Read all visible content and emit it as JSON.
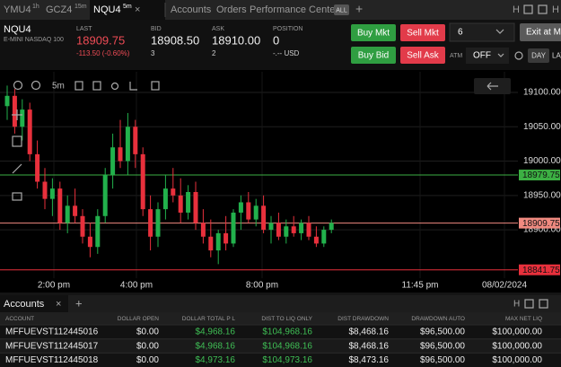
{
  "tabs": [
    {
      "symbol": "YMU4",
      "interval": "1h"
    },
    {
      "symbol": "GCZ4",
      "interval": "15m"
    },
    {
      "symbol": "NQU4",
      "interval": "5m"
    },
    {
      "symbol": "Accounts"
    },
    {
      "symbol": "Orders"
    },
    {
      "symbol": "Performance Center"
    }
  ],
  "filter_badge": "ALL",
  "quote": {
    "symbol": "NQU4",
    "description": "E-MINI NASDAQ 100",
    "last": {
      "label": "LAST",
      "value": "18909.75",
      "change": "-113.50 (-0.60%)"
    },
    "bid": {
      "label": "BID",
      "value": "18908.50",
      "size": "3"
    },
    "ask": {
      "label": "ASK",
      "value": "18910.00",
      "size": "2"
    },
    "position": {
      "label": "POSITION",
      "value": "0",
      "pnl": "-.-- USD"
    }
  },
  "order_entry": {
    "buy_market": "Buy Mkt",
    "sell_market": "Sell Mkt",
    "buy_bid": "Buy Bid",
    "sell_ask": "Sell Ask",
    "quantity": "6",
    "exit": "Exit at Mkt",
    "atm_label": "ATM",
    "atm_value": "OFF",
    "tif": "DAY",
    "layout": "LAY"
  },
  "chart_toolbar": {
    "interval": "5m"
  },
  "chart_data": {
    "type": "candlestick",
    "open": [
      19080,
      19095,
      19050,
      19075,
      19010,
      18970,
      18945,
      18960,
      18910,
      18935,
      18920,
      18890,
      18875,
      18920,
      18980,
      19020,
      19000,
      19050,
      19010,
      18930,
      18890,
      18930,
      18960,
      18950,
      18925,
      18955,
      18910,
      18890,
      18870,
      18895,
      18880,
      18925,
      18940,
      18915,
      18935,
      18900,
      18910,
      18890,
      18905,
      18895,
      18910,
      18890,
      18880,
      18900
    ],
    "high": [
      19110,
      19105,
      19090,
      19085,
      19030,
      18990,
      18975,
      18970,
      18950,
      18960,
      18930,
      18910,
      18930,
      18990,
      19040,
      19060,
      19070,
      19060,
      19020,
      18950,
      18940,
      18980,
      18990,
      18975,
      18965,
      18970,
      18930,
      18915,
      18900,
      18920,
      18930,
      18950,
      18955,
      18945,
      18950,
      18920,
      18925,
      18915,
      18920,
      18915,
      18920,
      18905,
      18905,
      18915
    ],
    "low": [
      19060,
      19040,
      19030,
      19000,
      18960,
      18930,
      18920,
      18900,
      18895,
      18910,
      18880,
      18860,
      18865,
      18910,
      18960,
      18990,
      18980,
      18990,
      18920,
      18870,
      18875,
      18915,
      18940,
      18910,
      18915,
      18900,
      18880,
      18860,
      18850,
      18870,
      18875,
      18900,
      18910,
      18905,
      18895,
      18880,
      18885,
      18880,
      18890,
      18885,
      18885,
      18875,
      18875,
      18895
    ],
    "close": [
      19095,
      19050,
      19075,
      19010,
      18970,
      18945,
      18960,
      18910,
      18935,
      18920,
      18890,
      18875,
      18920,
      18980,
      19020,
      19000,
      19050,
      19010,
      18930,
      18890,
      18930,
      18960,
      18950,
      18925,
      18955,
      18910,
      18890,
      18870,
      18895,
      18880,
      18925,
      18940,
      18915,
      18935,
      18900,
      18910,
      18890,
      18905,
      18895,
      18910,
      18890,
      18880,
      18900,
      18910
    ],
    "up_color": "#22b14c",
    "down_color": "#e8303c",
    "ylim": [
      18810,
      19130
    ],
    "yticks": [
      {
        "value": 18900,
        "label": "18900.00"
      },
      {
        "value": 18950,
        "label": "18950.00"
      },
      {
        "value": 19000,
        "label": "19000.00"
      },
      {
        "value": 19050,
        "label": "19050.00"
      },
      {
        "value": 19100,
        "label": "19100.00"
      }
    ],
    "grid": true,
    "price_lines": [
      {
        "value": 18979.75,
        "color": "#3cb043"
      },
      {
        "value": 18909.75,
        "color": "#f08a80"
      },
      {
        "value": 18841.75,
        "color": "#e8303c"
      }
    ],
    "time_labels": [
      "2:00 pm",
      "4:00 pm",
      "8:00 pm",
      "11:45 pm",
      "08/02/2024"
    ]
  },
  "accounts": {
    "title": "Accounts",
    "columns": [
      "ACCOUNT",
      "DOLLAR OPEN",
      "DOLLAR TOTAL P L",
      "DIST TO LIQ ONLY",
      "DIST DRAWDOWN",
      "DRAWDOWN AUTO",
      "MAX NET LIQ"
    ],
    "rows": [
      [
        "MFFUEVST112445016",
        "$0.00",
        "$4,968.16",
        "$104,968.16",
        "$8,468.16",
        "$96,500.00",
        "$100,000.00"
      ],
      [
        "MFFUEVST112445017",
        "$0.00",
        "$4,968.16",
        "$104,968.16",
        "$8,468.16",
        "$96,500.00",
        "$100,000.00"
      ],
      [
        "MFFUEVST112445018",
        "$0.00",
        "$4,973.16",
        "$104,973.16",
        "$8,473.16",
        "$96,500.00",
        "$100,000.00"
      ]
    ]
  }
}
